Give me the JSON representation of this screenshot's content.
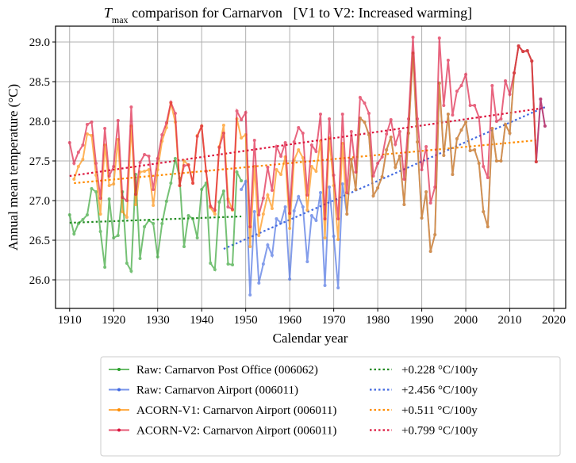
{
  "chart_data": {
    "type": "line",
    "title": {
      "var": "T",
      "sub": "max",
      "rest": " comparison for Carnarvon   [V1 to V2: Increased warming]"
    },
    "xlabel": "Calendar year",
    "ylabel": "Annual mean temperature (°C)",
    "xlim": [
      1906.8,
      2022.7
    ],
    "ylim": [
      25.64,
      29.2
    ],
    "xticks": [
      1910,
      1920,
      1930,
      1940,
      1950,
      1960,
      1970,
      1980,
      1990,
      2000,
      2010,
      2020
    ],
    "yticks": [
      "26.0",
      "26.5",
      "27.0",
      "27.5",
      "28.0",
      "28.5",
      "29.0"
    ],
    "grid": true,
    "legend_position": "bottom-outside",
    "series": [
      {
        "name": "Raw: Carnarvon Post Office (006062)",
        "color": "#2ca02c",
        "start": 1910,
        "values": [
          26.82,
          26.58,
          26.71,
          26.76,
          26.82,
          27.15,
          27.11,
          26.61,
          26.16,
          27.02,
          26.53,
          26.56,
          27.11,
          26.21,
          26.11,
          27.33,
          26.27,
          26.67,
          26.75,
          26.71,
          26.29,
          26.71,
          26.99,
          27.22,
          27.53,
          27.28,
          26.42,
          26.81,
          26.77,
          26.53,
          27.14,
          27.22,
          26.21,
          26.13,
          26.98,
          27.12,
          26.2,
          26.19,
          27.36,
          27.25
        ]
      },
      {
        "name": "Raw: Carnarvon Airport (006011)",
        "color": "#4169e1",
        "start": 1949,
        "values": [
          27.14,
          27.24,
          25.81,
          26.86,
          25.96,
          26.2,
          26.44,
          26.31,
          26.77,
          26.72,
          26.92,
          26.01,
          26.87,
          27.05,
          26.92,
          26.23,
          26.81,
          26.75,
          27.1,
          25.93,
          27.17,
          26.55,
          25.9,
          27.21,
          26.83,
          27.52,
          27.14,
          28.04,
          27.99,
          27.83,
          27.06,
          27.16,
          27.3,
          27.64,
          27.8,
          27.42,
          27.56,
          26.95,
          27.85,
          28.86,
          27.74,
          26.78,
          27.11,
          26.36,
          26.57,
          28.48,
          27.57,
          28.09,
          27.33,
          27.78,
          27.89,
          27.99,
          27.63,
          27.64,
          27.47,
          26.86,
          26.67,
          27.91,
          27.5,
          27.5,
          27.96,
          27.85,
          28.61,
          28.95,
          28.88,
          28.89,
          28.76,
          27.49,
          28.28,
          27.94
        ]
      },
      {
        "name": "ACORN-V1: Carnarvon Airport (006011)",
        "color": "#ff8c00",
        "start": 1911,
        "values": [
          27.27,
          27.43,
          27.52,
          27.84,
          27.82,
          27.32,
          26.83,
          27.7,
          27.19,
          27.21,
          27.77,
          26.86,
          26.79,
          27.94,
          26.95,
          27.36,
          27.37,
          27.39,
          26.94,
          27.39,
          27.75,
          27.92,
          28.23,
          27.99,
          27.19,
          27.5,
          27.45,
          27.22,
          27.82,
          27.94,
          27.37,
          26.91,
          26.83,
          27.68,
          27.95,
          27.02,
          26.88,
          28.03,
          27.79,
          27.83,
          26.42,
          27.43,
          26.56,
          26.83,
          27.07,
          26.9,
          27.39,
          27.33,
          27.55,
          26.65,
          27.51,
          27.64,
          27.54,
          26.88,
          27.43,
          27.37,
          27.75,
          26.53,
          27.79,
          27.19,
          26.51,
          27.72,
          26.83,
          27.52,
          27.14,
          28.04,
          27.99,
          27.83,
          27.06,
          27.16,
          27.3,
          27.64,
          27.8,
          27.42,
          27.56,
          26.95,
          27.85,
          28.86,
          27.74,
          26.78,
          27.11,
          26.36,
          26.57,
          28.48,
          27.57,
          28.09,
          27.33,
          27.78,
          27.89,
          27.99,
          27.63,
          27.64,
          27.47,
          26.86,
          26.67,
          27.91,
          27.5,
          27.5,
          27.96,
          27.85,
          28.61,
          28.95,
          28.88,
          28.89,
          28.76,
          27.49
        ]
      },
      {
        "name": "ACORN-V2: Carnarvon Airport (006011)",
        "color": "#dc143c",
        "start": 1910,
        "values": [
          27.73,
          27.47,
          27.61,
          27.7,
          27.96,
          27.99,
          27.47,
          27.03,
          27.91,
          27.31,
          27.43,
          28.01,
          27.04,
          27.0,
          28.18,
          27.08,
          27.48,
          27.58,
          27.56,
          27.14,
          27.53,
          27.83,
          27.98,
          28.24,
          28.1,
          27.19,
          27.44,
          27.45,
          27.22,
          27.81,
          27.94,
          27.37,
          26.93,
          26.88,
          27.67,
          27.85,
          26.92,
          26.89,
          28.13,
          28.02,
          28.11,
          26.67,
          27.76,
          26.82,
          27.03,
          27.42,
          27.13,
          27.68,
          27.56,
          27.73,
          26.84,
          27.74,
          27.92,
          27.85,
          27.07,
          27.7,
          27.62,
          28.09,
          26.77,
          28.03,
          27.32,
          26.77,
          28.09,
          27.1,
          27.87,
          27.36,
          28.3,
          28.23,
          28.1,
          27.31,
          27.47,
          27.55,
          27.84,
          28.02,
          27.71,
          27.87,
          27.27,
          28.03,
          29.06,
          28.03,
          27.39,
          27.68,
          26.97,
          27.17,
          29.05,
          28.2,
          28.77,
          28.08,
          28.38,
          28.45,
          28.59,
          28.2,
          28.2,
          28.05,
          27.43,
          27.29,
          28.45,
          28.0,
          28.03,
          28.51,
          28.34,
          28.61,
          28.95,
          28.88,
          28.89,
          28.76,
          27.49,
          28.28,
          27.94
        ]
      }
    ],
    "trends": [
      {
        "label": "+0.228 °C/100y",
        "color": "#228b22",
        "x": [
          1910,
          1949
        ],
        "y": [
          26.72,
          26.8
        ]
      },
      {
        "label": "+2.456 °C/100y",
        "color": "#4169e1",
        "x": [
          1945,
          2018
        ],
        "y": [
          26.39,
          28.18
        ]
      },
      {
        "label": "+0.511 °C/100y",
        "color": "#ff8c00",
        "x": [
          1911,
          2016
        ],
        "y": [
          27.22,
          27.76
        ]
      },
      {
        "label": "+0.799 °C/100y",
        "color": "#dc143c",
        "x": [
          1910,
          2018
        ],
        "y": [
          27.31,
          28.17
        ]
      }
    ]
  }
}
